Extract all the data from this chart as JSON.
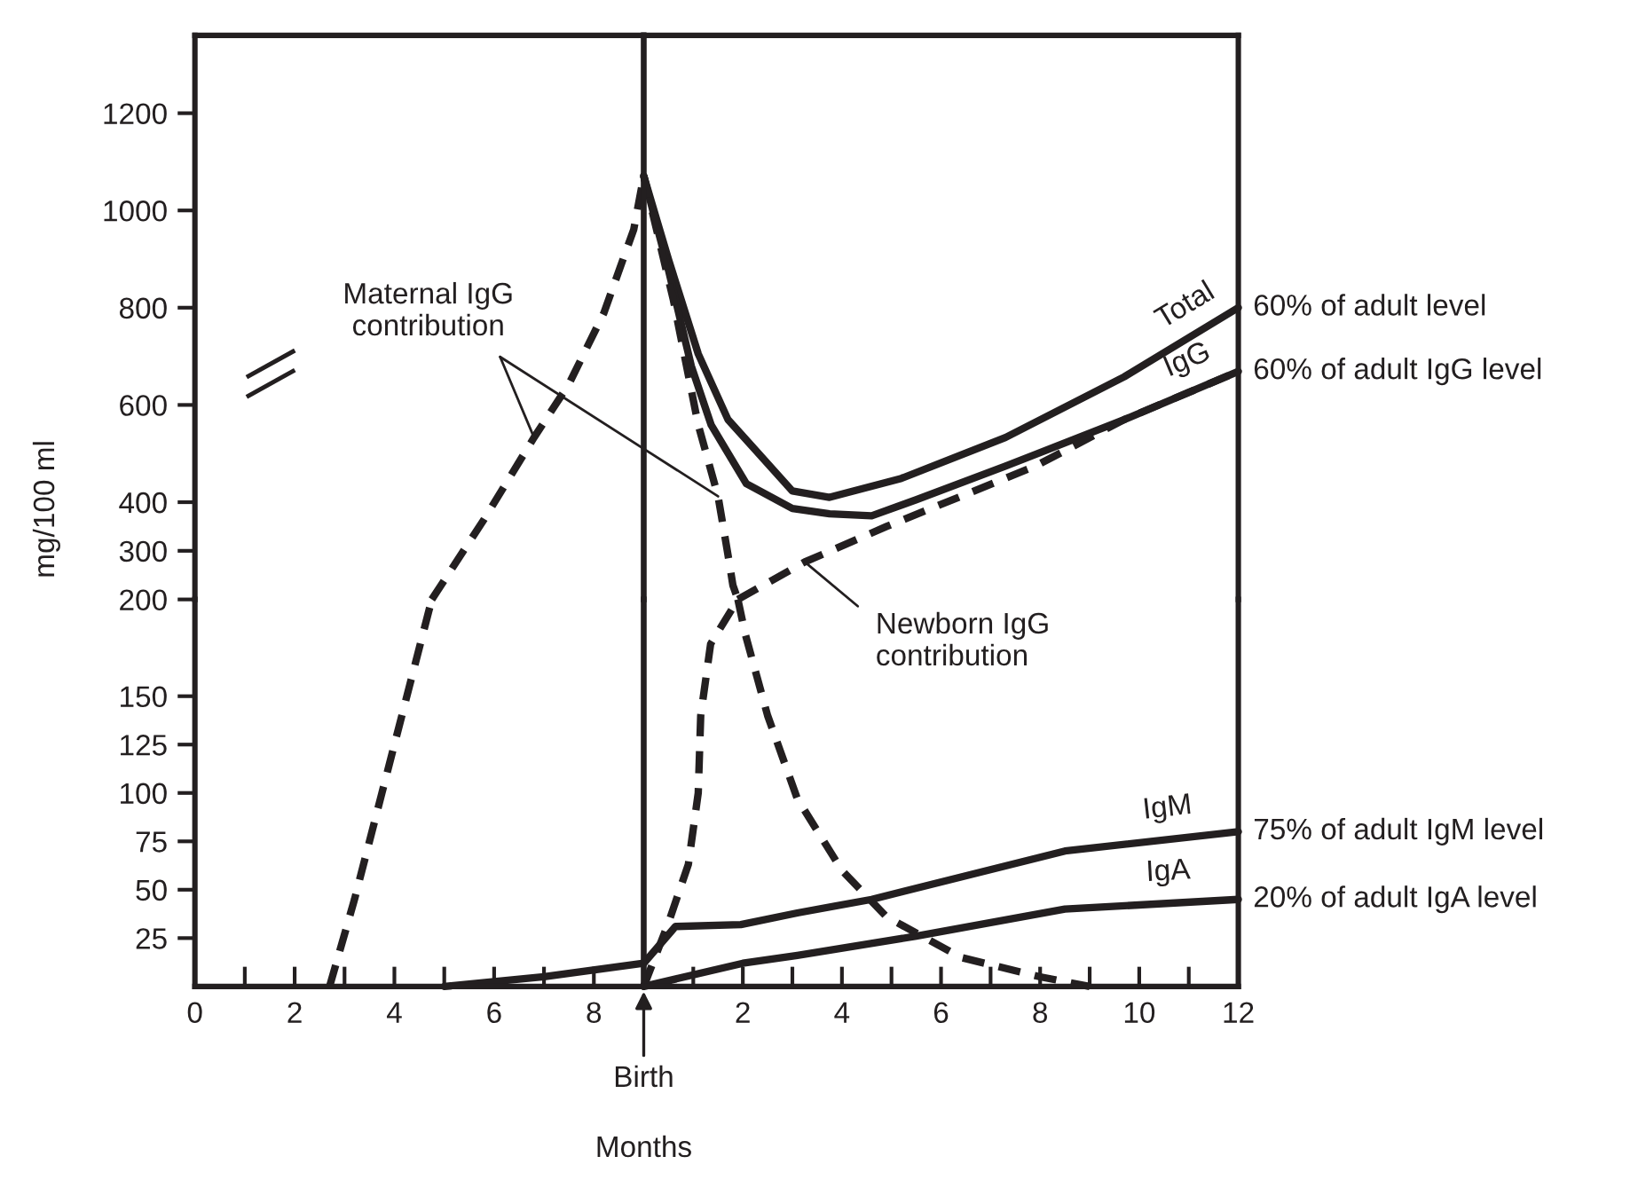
{
  "chart_data": [
    {
      "type": "line",
      "ylabel": "mg/100 ml",
      "xlim": [
        0,
        9
      ],
      "ylim": [
        200,
        1360
      ],
      "yticks": [
        300,
        400,
        600,
        800,
        1000,
        1200
      ],
      "tick_labels": "y",
      "grid": false,
      "legend": false,
      "series": [
        {
          "name": "Maternal IgG\ncontribution",
          "color": "#231f20",
          "line_style": "dashed",
          "x": [
            4.75,
            5.8,
            6.8,
            7.5,
            8.2,
            8.8,
            9.0
          ],
          "values": [
            200,
            365,
            533,
            643,
            789,
            961,
            1071
          ]
        }
      ]
    },
    {
      "type": "line",
      "xlim": [
        0,
        12
      ],
      "ylim": [
        200,
        1360
      ],
      "tick_labels": false,
      "grid": false,
      "legend": false,
      "series": [
        {
          "name": "Total",
          "color": "#231f20",
          "line_style": "solid",
          "x": [
            0,
            0.5,
            1.1,
            1.7,
            3.0,
            3.75,
            5.2,
            7.3,
            9.7,
            12
          ],
          "values": [
            1071,
            899,
            705,
            570,
            423,
            410,
            449,
            533,
            658,
            800
          ]
        },
        {
          "name": "IgG",
          "color": "#231f20",
          "line_style": "solid",
          "x": [
            0,
            0.5,
            0.96,
            1.36,
            2.07,
            3.0,
            3.75,
            4.6,
            5.5,
            7.3,
            9.7,
            12
          ],
          "values": [
            1071,
            877,
            680,
            559,
            438,
            387,
            376,
            372,
            405,
            474,
            570,
            669
          ]
        },
        {
          "color": "#231f20",
          "line_style": "dashed",
          "x": [
            0,
            0.6,
            1.1,
            1.5,
            1.7,
            1.8,
            1.9
          ],
          "values": [
            1071,
            815,
            559,
            412,
            292,
            229,
            200
          ]
        },
        {
          "name": "Newborn IgG\ncontribution",
          "color": "#231f20",
          "line_style": "dashed",
          "x": [
            1.9,
            3.25,
            4.9,
            6.4,
            7.9,
            9.7,
            12
          ],
          "values": [
            200,
            277,
            350,
            412,
            474,
            570,
            669
          ]
        }
      ],
      "annotations": [
        "60% of adult level",
        "60% of adult IgG level"
      ]
    },
    {
      "type": "line",
      "xlim": [
        0,
        9
      ],
      "ylim": [
        0,
        200
      ],
      "xticks": [
        0,
        {
          "value": 1,
          "label": null
        },
        2,
        {
          "value": 3,
          "label": null
        },
        4,
        {
          "value": 5,
          "label": null
        },
        6,
        {
          "value": 7,
          "label": null
        },
        8
      ],
      "yticks": [
        25,
        50,
        75,
        100,
        125,
        150,
        200
      ],
      "grid": false,
      "legend": false,
      "annotations": [
        "Birth"
      ],
      "series": [
        {
          "color": "#231f20",
          "line_style": "dashed",
          "x": [
            2.7,
            3.2,
            3.75,
            4.3,
            4.75
          ],
          "values": [
            0,
            45,
            100,
            155,
            200
          ]
        },
        {
          "color": "#231f20",
          "line_style": "solid",
          "x": [
            5,
            7,
            9
          ],
          "values": [
            0,
            5,
            12
          ]
        }
      ]
    },
    {
      "type": "line",
      "xlabel": "Months",
      "xlim": [
        0,
        12
      ],
      "ylim": [
        0,
        200
      ],
      "xticks": [
        {
          "value": 1,
          "label": null
        },
        2,
        {
          "value": 3,
          "label": null
        },
        4,
        {
          "value": 5,
          "label": null
        },
        6,
        {
          "value": 7,
          "label": null
        },
        8,
        {
          "value": 9,
          "label": null
        },
        10,
        {
          "value": 11,
          "label": null
        },
        12
      ],
      "tick_labels": "x",
      "grid": false,
      "legend": false,
      "series": [
        {
          "color": "#231f20",
          "line_style": "dashed",
          "x": [
            1.9,
            2.05,
            2.5,
            3.1,
            4.0,
            4.9,
            6.4,
            8.0,
            9.0
          ],
          "values": [
            200,
            182,
            140,
            97,
            60,
            36,
            15,
            5,
            0
          ]
        },
        {
          "color": "#231f20",
          "line_style": "dashed",
          "x": [
            0,
            0.5,
            0.9,
            1.1,
            1.15,
            1.35,
            1.9
          ],
          "values": [
            0,
            33,
            63,
            100,
            140,
            177,
            200
          ]
        },
        {
          "name": "IgM",
          "color": "#231f20",
          "line_style": "solid",
          "x": [
            0,
            0.64,
            1.96,
            3.1,
            4.6,
            8.5,
            12
          ],
          "values": [
            12,
            31,
            32,
            38,
            45,
            70,
            80
          ]
        },
        {
          "name": "IgA",
          "color": "#231f20",
          "line_style": "solid",
          "x": [
            0,
            2,
            3.1,
            5.5,
            8.5,
            12
          ],
          "values": [
            0,
            12,
            16,
            26,
            40,
            45
          ]
        }
      ],
      "annotations": [
        "75% of adult IgM level",
        "20% of adult IgA level"
      ]
    }
  ]
}
